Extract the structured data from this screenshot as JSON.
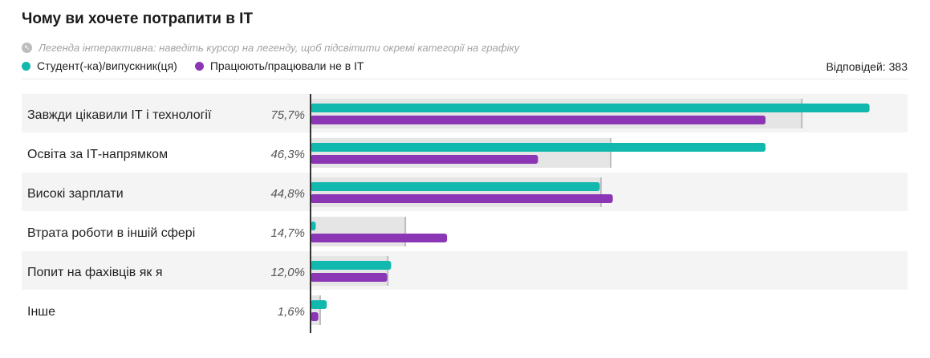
{
  "header": {
    "title": "Чому ви хочете потрапити в ІТ",
    "hint": "Легенда інтерактивна: наведіть курсор на легенду, щоб підсвітити окремі категорії на графіку",
    "responses": "Відповідей: 383"
  },
  "colors": {
    "teal": "#11b8ad",
    "purple": "#8a36b5",
    "total": "#e5e5e5",
    "total_edge": "#bdbdbd",
    "axis": "#333333",
    "row_stripe": "#f4f4f4"
  },
  "chart_data": {
    "type": "bar",
    "orientation": "horizontal",
    "title": "Чому ви хочете потрапити в ІТ",
    "legend_position": "top-left",
    "xlim": [
      0,
      100
    ],
    "categories": [
      "Завжди цікавили ІТ і технології",
      "Освіта за ІТ-напрямком",
      "Високі зарплати",
      "Втрата роботи в іншій сфері",
      "Попит на фахівців як я",
      "Інше"
    ],
    "total_labels": [
      "75,7%",
      "46,3%",
      "44,8%",
      "14,7%",
      "12,0%",
      "1,6%"
    ],
    "total_values": [
      75.7,
      46.3,
      44.8,
      14.7,
      12.0,
      1.6
    ],
    "series": [
      {
        "name": "Студент(-ка)/випускник(ця)",
        "color": "#11b8ad",
        "values": [
          86,
          70,
          44.5,
          0.8,
          12.4,
          2.5
        ]
      },
      {
        "name": "Працюють/працювали не в ІТ",
        "color": "#8a36b5",
        "values": [
          70,
          35,
          46.5,
          21,
          11.8,
          1.2
        ]
      }
    ]
  }
}
